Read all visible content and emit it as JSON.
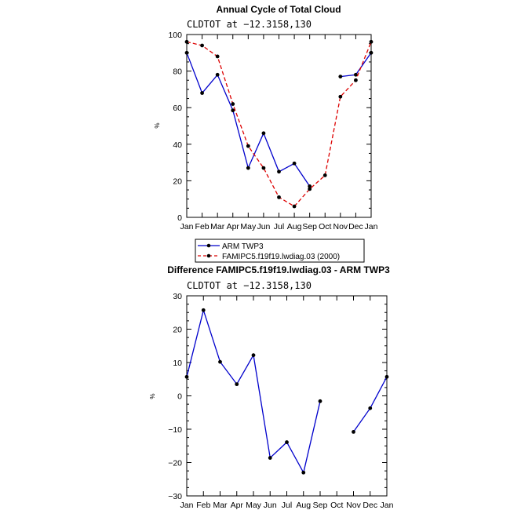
{
  "chart_data": [
    {
      "type": "line",
      "title": "Annual Cycle of Total Cloud",
      "subtitle": "CLDTOT at −12.3158,130",
      "ylabel": "%",
      "ylim": [
        0,
        100
      ],
      "yticks": [
        "0",
        "20",
        "40",
        "60",
        "80",
        "100"
      ],
      "categories": [
        "Jan",
        "Feb",
        "Mar",
        "Apr",
        "May",
        "Jun",
        "Jul",
        "Aug",
        "Sep",
        "Oct",
        "Nov",
        "Dec",
        "Jan"
      ],
      "series": [
        {
          "name": "ARM TWP3",
          "color": "#0000cc",
          "style": "solid",
          "values": [
            90,
            68,
            78,
            58.5,
            27,
            46,
            25,
            29.5,
            17,
            null,
            77,
            78,
            90
          ]
        },
        {
          "name": "FAMIPC5.f19f19.lwdiag.03 (2000)",
          "color": "#dd0000",
          "style": "dashed",
          "values": [
            96,
            94,
            88,
            62,
            39,
            27,
            11,
            6,
            15.5,
            23,
            66,
            75,
            96
          ]
        }
      ],
      "legend": "bottom"
    },
    {
      "type": "line",
      "title": "Difference FAMIPC5.f19f19.lwdiag.03 - ARM TWP3",
      "subtitle": "CLDTOT at −12.3158,130",
      "ylabel": "%",
      "ylim": [
        -30,
        30
      ],
      "yticks": [
        "−30",
        "−20",
        "−10",
        "0",
        "10",
        "20",
        "30"
      ],
      "categories": [
        "Jan",
        "Feb",
        "Mar",
        "Apr",
        "May",
        "Jun",
        "Jul",
        "Aug",
        "Sep",
        "Oct",
        "Nov",
        "Dec",
        "Jan"
      ],
      "series": [
        {
          "color": "#0000cc",
          "style": "solid",
          "values": [
            5.7,
            25.7,
            10.2,
            3.5,
            12.2,
            -18.6,
            -13.9,
            -23,
            -1.6,
            null,
            -10.8,
            -3.7,
            5.7
          ]
        }
      ]
    }
  ]
}
